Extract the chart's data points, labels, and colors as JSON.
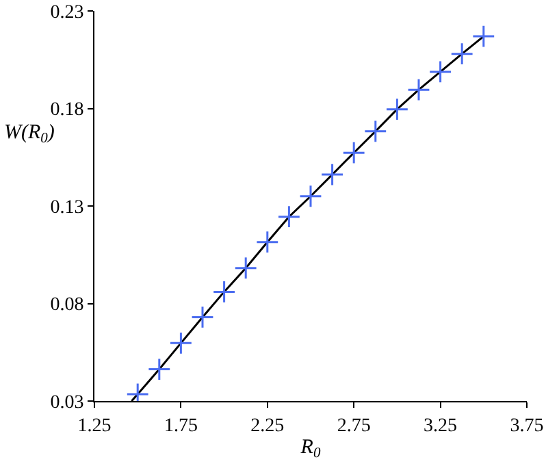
{
  "chart_data": {
    "type": "scatter",
    "xlabel": "R$_{0}$",
    "ylabel": "W(R$_{0}$)",
    "xlim": [
      1.25,
      3.75
    ],
    "xticks": [
      1.25,
      1.75,
      2.25,
      2.75,
      3.25,
      3.75
    ],
    "ylim": [
      0.03,
      0.23
    ],
    "yticks": [
      0.03,
      0.08,
      0.13,
      0.18,
      0.23
    ],
    "grid": false,
    "marker": "cross",
    "series": [
      {
        "type": "line",
        "marker": "none",
        "color": "#000000",
        "x": [
          1.465,
          1.5,
          1.625,
          1.75,
          1.875,
          2.0,
          2.125,
          2.25,
          2.375,
          2.5,
          2.625,
          2.75,
          2.875,
          3.0,
          3.125,
          3.25,
          3.375,
          3.5
        ],
        "values": [
          0.03,
          0.0335,
          0.0463,
          0.0597,
          0.073,
          0.086,
          0.0982,
          0.1115,
          0.1245,
          0.135,
          0.1461,
          0.1573,
          0.1683,
          0.1796,
          0.1896,
          0.1988,
          0.208,
          0.217
        ]
      },
      {
        "color": "#4a6cf0",
        "x": [
          1.5,
          1.625,
          1.75,
          1.875,
          2.0,
          2.125,
          2.25,
          2.375,
          2.5,
          2.625,
          2.75,
          2.875,
          3.0,
          3.125,
          3.25,
          3.375,
          3.5
        ],
        "values": [
          0.0335,
          0.0463,
          0.0597,
          0.073,
          0.086,
          0.0982,
          0.1115,
          0.1245,
          0.135,
          0.1461,
          0.1573,
          0.1683,
          0.1796,
          0.1896,
          0.1988,
          0.208,
          0.217
        ]
      }
    ]
  }
}
